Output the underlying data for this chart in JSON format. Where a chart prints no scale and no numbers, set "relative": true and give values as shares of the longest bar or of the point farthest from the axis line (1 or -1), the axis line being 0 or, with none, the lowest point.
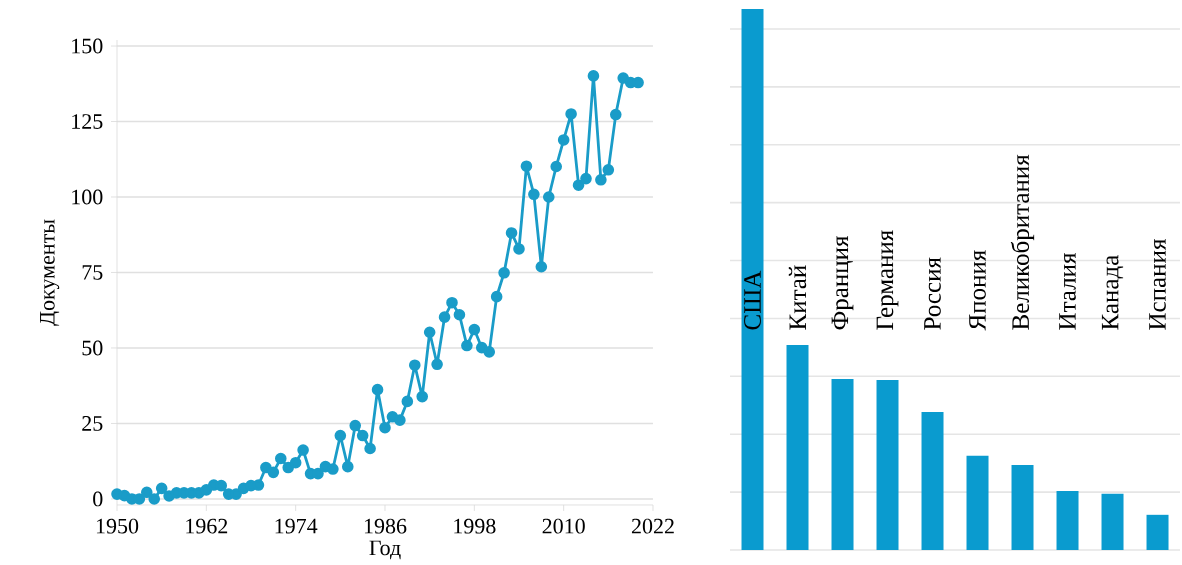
{
  "chart_data": [
    {
      "type": "line",
      "xlabel": "Год",
      "ylabel": "Документы",
      "x": [
        1950,
        1951,
        1952,
        1953,
        1954,
        1955,
        1956,
        1957,
        1958,
        1959,
        1960,
        1961,
        1962,
        1963,
        1964,
        1965,
        1966,
        1967,
        1968,
        1969,
        1970,
        1971,
        1972,
        1973,
        1974,
        1975,
        1976,
        1977,
        1978,
        1979,
        1980,
        1981,
        1982,
        1983,
        1984,
        1985,
        1986,
        1987,
        1988,
        1989,
        1990,
        1991,
        1992,
        1993,
        1994,
        1995,
        1996,
        1997,
        1998,
        1999,
        2000,
        2001,
        2002,
        2003,
        2004,
        2005,
        2006,
        2007,
        2008,
        2009,
        2010,
        2011,
        2012,
        2013,
        2014,
        2015,
        2016,
        2017,
        2018,
        2019,
        2020
      ],
      "values": [
        1.6,
        1.1,
        0,
        0,
        2.2,
        0,
        3.5,
        1,
        2,
        2,
        2,
        2,
        3,
        4.6,
        4.4,
        1.6,
        1.6,
        3.5,
        4.4,
        4.6,
        10.4,
        8.8,
        13.4,
        10.4,
        12,
        16.2,
        8.4,
        8.4,
        10.7,
        9.9,
        21,
        10.7,
        24.3,
        21,
        16.7,
        36.2,
        23.6,
        27.2,
        26.1,
        32.3,
        44.3,
        33.9,
        55.2,
        44.6,
        60.2,
        65,
        61,
        50.8,
        56.1,
        50.1,
        48.7,
        67,
        74.9,
        88.1,
        82.8,
        110.2,
        100.9,
        76.9,
        100,
        110.1,
        118.9,
        127.5,
        103.9,
        106.1,
        140.1,
        105.7,
        109,
        127.3,
        139.4,
        137.9,
        137.9
      ],
      "color": "#1a9cc8",
      "marker": "circle",
      "grid": "y",
      "xlim": [
        1950,
        2022
      ],
      "xticks": [
        1950,
        1962,
        1974,
        1986,
        1998,
        2010,
        2022
      ],
      "ylim": [
        -2,
        152
      ],
      "yticks": [
        0,
        25,
        50,
        75,
        100,
        125,
        150
      ]
    },
    {
      "type": "bar",
      "relative": true,
      "categories": [
        "США",
        "Китай",
        "Франция",
        "Германия",
        "Россия",
        "Япония",
        "Великобритания",
        "Италия",
        "Канада",
        "Испания"
      ],
      "values": [
        1,
        0.379,
        0.316,
        0.314,
        0.255,
        0.174,
        0.157,
        0.109,
        0.104,
        0.065
      ],
      "color": "#0a9bcf",
      "grid": true
    }
  ]
}
